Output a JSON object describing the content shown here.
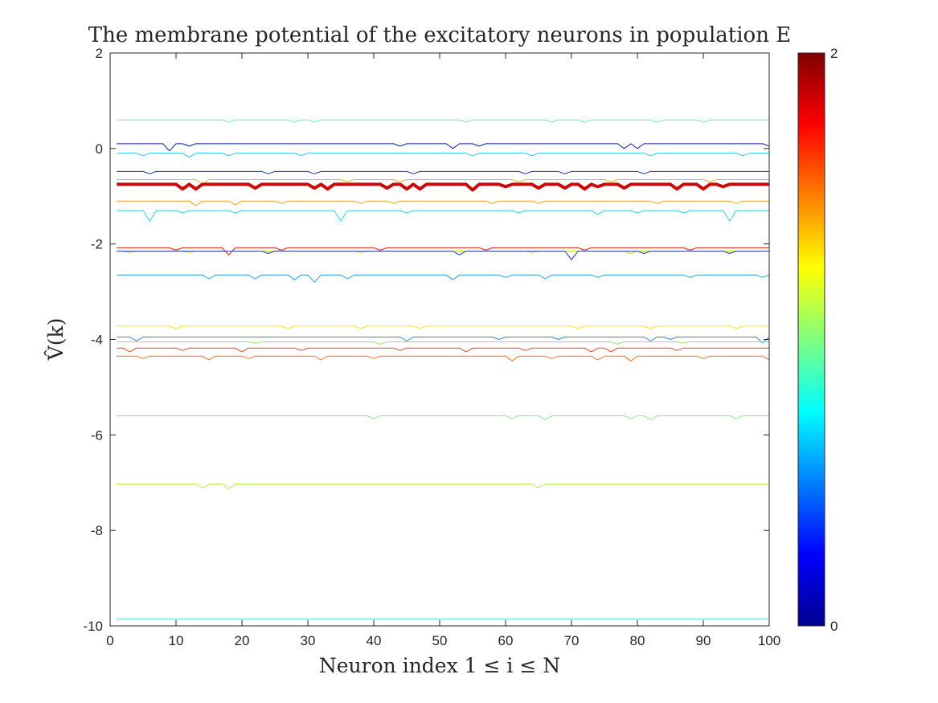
{
  "chart_data": {
    "type": "line",
    "title": "The membrane potential of the excitatory neurons in population E",
    "xlabel": "Neuron index 1 ≤ i ≤ N",
    "ylabel": "V̂(k)",
    "xlim": [
      0,
      100
    ],
    "ylim": [
      -10,
      2
    ],
    "xticks": [
      "0",
      "10",
      "20",
      "30",
      "40",
      "50",
      "60",
      "70",
      "80",
      "90",
      "100"
    ],
    "yticks": [
      "-10",
      "-8",
      "-6",
      "-4",
      "-2",
      "0",
      "2"
    ],
    "grid": false,
    "colorbar": {
      "range": [
        0,
        2
      ],
      "ticks": [
        "0",
        "2"
      ],
      "colormap": "jet"
    },
    "x_range": [
      1,
      100
    ],
    "series": [
      {
        "level": 0.6,
        "color": "#55f0b4",
        "dips": [
          [
            18,
            -0.05
          ],
          [
            28,
            -0.05
          ],
          [
            31,
            -0.05
          ],
          [
            54,
            -0.05
          ],
          [
            67,
            -0.05
          ],
          [
            72,
            -0.05
          ],
          [
            83,
            -0.05
          ],
          [
            90,
            -0.05
          ]
        ]
      },
      {
        "level": 0.1,
        "color": "#0a1ea0",
        "dips": [
          [
            9,
            -0.15
          ],
          [
            12,
            -0.05
          ],
          [
            44,
            -0.05
          ],
          [
            52,
            -0.1
          ],
          [
            56,
            -0.05
          ],
          [
            78,
            -0.1
          ],
          [
            80,
            -0.1
          ],
          [
            100,
            -0.05
          ]
        ]
      },
      {
        "level": -0.1,
        "color": "#1ec8e6",
        "dips": [
          [
            5,
            -0.05
          ],
          [
            12,
            -0.08
          ],
          [
            18,
            -0.05
          ],
          [
            29,
            -0.05
          ],
          [
            55,
            -0.05
          ],
          [
            64,
            -0.05
          ],
          [
            82,
            -0.05
          ],
          [
            96,
            -0.05
          ]
        ]
      },
      {
        "level": -0.48,
        "color": "#1432c8",
        "dips": [
          [
            6,
            -0.05
          ],
          [
            24,
            -0.05
          ],
          [
            31,
            -0.05
          ],
          [
            46,
            -0.05
          ],
          [
            63,
            -0.05
          ],
          [
            69,
            -0.05
          ],
          [
            81,
            -0.05
          ]
        ]
      },
      {
        "level": -0.65,
        "color": "#ffb414",
        "dips": [
          [
            14,
            -0.1
          ],
          [
            36,
            -0.05
          ],
          [
            44,
            -0.05
          ],
          [
            62,
            -0.05
          ],
          [
            76,
            -0.05
          ],
          [
            91,
            -0.05
          ]
        ]
      },
      {
        "level": -0.75,
        "color": "#c80a0a",
        "width": 4,
        "dips": [
          [
            11,
            -0.1
          ],
          [
            13,
            -0.1
          ],
          [
            22,
            -0.08
          ],
          [
            31,
            -0.08
          ],
          [
            33,
            -0.1
          ],
          [
            42,
            -0.08
          ],
          [
            45,
            -0.1
          ],
          [
            47,
            -0.1
          ],
          [
            55,
            -0.12
          ],
          [
            60,
            -0.05
          ],
          [
            65,
            -0.08
          ],
          [
            69,
            -0.08
          ],
          [
            72,
            -0.1
          ],
          [
            74,
            -0.05
          ],
          [
            78,
            -0.08
          ],
          [
            86,
            -0.1
          ],
          [
            90,
            -0.1
          ],
          [
            93,
            -0.05
          ]
        ]
      },
      {
        "level": -1.1,
        "color": "#f0a014",
        "dips": [
          [
            13,
            -0.1
          ],
          [
            19,
            -0.08
          ],
          [
            26,
            -0.05
          ],
          [
            38,
            -0.05
          ],
          [
            43,
            -0.05
          ],
          [
            58,
            -0.05
          ],
          [
            65,
            -0.05
          ],
          [
            83,
            -0.05
          ],
          [
            95,
            -0.05
          ]
        ]
      },
      {
        "level": -1.3,
        "color": "#28d2e6",
        "dips": [
          [
            6,
            -0.22
          ],
          [
            11,
            -0.05
          ],
          [
            19,
            -0.05
          ],
          [
            35,
            -0.22
          ],
          [
            45,
            -0.05
          ],
          [
            62,
            -0.05
          ],
          [
            74,
            -0.08
          ],
          [
            80,
            -0.05
          ],
          [
            87,
            -0.05
          ],
          [
            94,
            -0.22
          ]
        ]
      },
      {
        "level": -2.08,
        "color": "#e61e0a",
        "dips": [
          [
            10,
            -0.05
          ],
          [
            18,
            -0.15
          ],
          [
            26,
            -0.05
          ],
          [
            41,
            -0.05
          ],
          [
            57,
            -0.05
          ],
          [
            72,
            -0.05
          ],
          [
            88,
            -0.05
          ]
        ]
      },
      {
        "level": -2.15,
        "color": "#c8d20a",
        "dips": [
          [
            3,
            -0.03
          ],
          [
            12,
            -0.03
          ],
          [
            38,
            -0.03
          ],
          [
            64,
            -0.03
          ],
          [
            79,
            -0.05
          ]
        ]
      },
      {
        "level": -2.15,
        "color": "#1e3cb4",
        "dips": [
          [
            24,
            -0.05
          ],
          [
            53,
            -0.08
          ],
          [
            70,
            -0.18
          ],
          [
            81,
            -0.05
          ],
          [
            94,
            -0.05
          ]
        ]
      },
      {
        "level": -2.65,
        "color": "#1ea0dc",
        "dips": [
          [
            15,
            -0.08
          ],
          [
            22,
            -0.08
          ],
          [
            28,
            -0.1
          ],
          [
            31,
            -0.15
          ],
          [
            36,
            -0.08
          ],
          [
            52,
            -0.1
          ],
          [
            60,
            -0.05
          ],
          [
            66,
            -0.08
          ],
          [
            74,
            -0.05
          ],
          [
            88,
            -0.05
          ],
          [
            99,
            -0.05
          ]
        ]
      },
      {
        "level": -3.72,
        "color": "#f0e614",
        "dips": [
          [
            10,
            -0.05
          ],
          [
            27,
            -0.05
          ],
          [
            38,
            -0.05
          ],
          [
            47,
            -0.05
          ],
          [
            71,
            -0.05
          ],
          [
            82,
            -0.05
          ],
          [
            95,
            -0.05
          ]
        ]
      },
      {
        "level": -3.95,
        "color": "#3c82e6",
        "dips": [
          [
            4,
            -0.08
          ],
          [
            45,
            -0.08
          ],
          [
            59,
            -0.05
          ],
          [
            68,
            -0.05
          ],
          [
            82,
            -0.08
          ],
          [
            85,
            -0.05
          ],
          [
            99,
            -0.12
          ]
        ]
      },
      {
        "level": -4.05,
        "color": "#96e664",
        "dips": [
          [
            22,
            -0.03
          ],
          [
            41,
            -0.05
          ],
          [
            77,
            -0.05
          ],
          [
            87,
            -0.03
          ]
        ]
      },
      {
        "level": -4.18,
        "color": "#e64614",
        "dips": [
          [
            3,
            -0.08
          ],
          [
            11,
            -0.05
          ],
          [
            20,
            -0.08
          ],
          [
            29,
            -0.05
          ],
          [
            44,
            -0.05
          ],
          [
            54,
            -0.08
          ],
          [
            63,
            -0.05
          ],
          [
            73,
            -0.08
          ],
          [
            76,
            -0.08
          ],
          [
            86,
            -0.05
          ]
        ]
      },
      {
        "level": -4.35,
        "color": "#fa6e1e",
        "dips": [
          [
            5,
            -0.05
          ],
          [
            15,
            -0.08
          ],
          [
            21,
            -0.05
          ],
          [
            32,
            -0.08
          ],
          [
            40,
            -0.05
          ],
          [
            61,
            -0.1
          ],
          [
            67,
            -0.05
          ],
          [
            74,
            -0.08
          ],
          [
            79,
            -0.1
          ],
          [
            90,
            -0.05
          ],
          [
            100,
            -0.08
          ]
        ]
      },
      {
        "level": -5.6,
        "color": "#82f082",
        "dips": [
          [
            40,
            -0.06
          ],
          [
            61,
            -0.06
          ],
          [
            66,
            -0.08
          ],
          [
            79,
            -0.06
          ],
          [
            82,
            -0.08
          ],
          [
            95,
            -0.06
          ]
        ]
      },
      {
        "level": -7.03,
        "color": "#b4f050",
        "dips": [
          [
            14,
            -0.08
          ],
          [
            18,
            -0.1
          ],
          [
            65,
            -0.08
          ]
        ]
      },
      {
        "level": -9.85,
        "color": "#3ce6e6",
        "dips": []
      }
    ]
  }
}
